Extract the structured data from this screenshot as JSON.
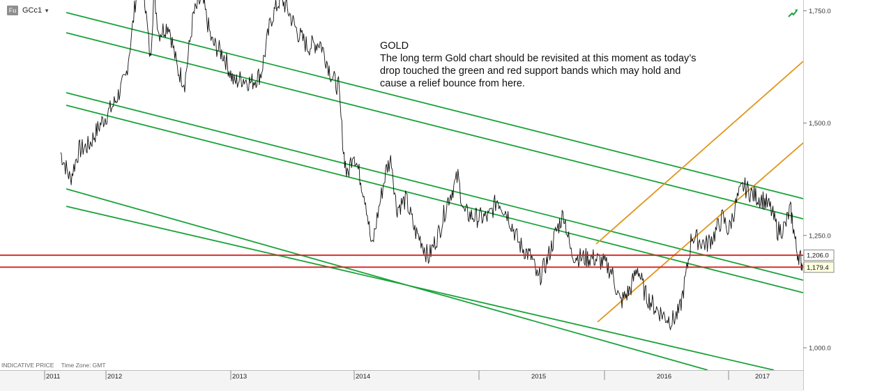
{
  "toolbar": {
    "badge": "Fu",
    "symbol": "GCc1",
    "trend_icon": "trend-arrow-icon"
  },
  "annotation": {
    "title": "GOLD",
    "lines": [
      "The long term Gold chart should be revisited at this moment as today’s",
      "drop touched the green and red support bands which may hold and",
      "cause a relief bounce from here."
    ]
  },
  "footer": {
    "price_type": "INDICATIVE PRICE",
    "timezone": "Time Zone: GMT"
  },
  "colors": {
    "price": "#111111",
    "channel": "#1aa23a",
    "support": "#d42020",
    "uptrend": "#e0951c"
  },
  "chart_data": {
    "type": "line",
    "x_ticks": [
      "2011",
      "2012",
      "2013",
      "2014",
      "2015",
      "2016",
      "2017"
    ],
    "y_ticks": [
      "1,000.0",
      "1,250.0",
      "1,500.0",
      "1,750.0"
    ],
    "ylim": [
      930,
      1900
    ],
    "xlim": [
      2010.97,
      2017.43
    ],
    "price_labels": [
      "1,206.0",
      "1,179.4"
    ],
    "support_levels": [
      1206.0,
      1179.4
    ],
    "series": [
      {
        "values": [
          [
            2010.97,
            1435
          ],
          [
            2011.05,
            1375
          ],
          [
            2011.12,
            1440
          ],
          [
            2011.2,
            1450
          ],
          [
            2011.3,
            1500
          ],
          [
            2011.4,
            1540
          ],
          [
            2011.5,
            1600
          ],
          [
            2011.55,
            1700
          ],
          [
            2011.6,
            1820
          ],
          [
            2011.63,
            1890
          ],
          [
            2011.66,
            1760
          ],
          [
            2011.7,
            1640
          ],
          [
            2011.73,
            1790
          ],
          [
            2011.77,
            1700
          ],
          [
            2011.85,
            1720
          ],
          [
            2011.92,
            1620
          ],
          [
            2011.98,
            1590
          ],
          [
            2012.05,
            1740
          ],
          [
            2012.12,
            1780
          ],
          [
            2012.2,
            1680
          ],
          [
            2012.3,
            1650
          ],
          [
            2012.38,
            1590
          ],
          [
            2012.45,
            1600
          ],
          [
            2012.52,
            1590
          ],
          [
            2012.6,
            1610
          ],
          [
            2012.68,
            1730
          ],
          [
            2012.76,
            1780
          ],
          [
            2012.82,
            1750
          ],
          [
            2012.9,
            1700
          ],
          [
            2012.98,
            1670
          ],
          [
            2013.08,
            1680
          ],
          [
            2013.12,
            1650
          ],
          [
            2013.18,
            1600
          ],
          [
            2013.23,
            1580
          ],
          [
            2013.27,
            1440
          ],
          [
            2013.3,
            1380
          ],
          [
            2013.35,
            1440
          ],
          [
            2013.45,
            1330
          ],
          [
            2013.5,
            1220
          ],
          [
            2013.55,
            1300
          ],
          [
            2013.62,
            1400
          ],
          [
            2013.66,
            1420
          ],
          [
            2013.7,
            1310
          ],
          [
            2013.78,
            1330
          ],
          [
            2013.85,
            1260
          ],
          [
            2013.9,
            1240
          ],
          [
            2013.96,
            1200
          ],
          [
            2014.05,
            1260
          ],
          [
            2014.12,
            1330
          ],
          [
            2014.2,
            1380
          ],
          [
            2014.25,
            1300
          ],
          [
            2014.35,
            1290
          ],
          [
            2014.45,
            1290
          ],
          [
            2014.52,
            1330
          ],
          [
            2014.6,
            1300
          ],
          [
            2014.7,
            1230
          ],
          [
            2014.8,
            1200
          ],
          [
            2014.85,
            1150
          ],
          [
            2014.92,
            1190
          ],
          [
            2015.0,
            1260
          ],
          [
            2015.06,
            1300
          ],
          [
            2015.12,
            1210
          ],
          [
            2015.2,
            1200
          ],
          [
            2015.3,
            1200
          ],
          [
            2015.38,
            1190
          ],
          [
            2015.45,
            1170
          ],
          [
            2015.52,
            1100
          ],
          [
            2015.6,
            1130
          ],
          [
            2015.66,
            1180
          ],
          [
            2015.72,
            1120
          ],
          [
            2015.8,
            1090
          ],
          [
            2015.88,
            1070
          ],
          [
            2015.94,
            1060
          ],
          [
            2016.0,
            1080
          ],
          [
            2016.06,
            1170
          ],
          [
            2016.1,
            1250
          ],
          [
            2016.15,
            1240
          ],
          [
            2016.22,
            1230
          ],
          [
            2016.28,
            1250
          ],
          [
            2016.35,
            1290
          ],
          [
            2016.4,
            1260
          ],
          [
            2016.47,
            1330
          ],
          [
            2016.52,
            1360
          ],
          [
            2016.6,
            1340
          ],
          [
            2016.68,
            1330
          ],
          [
            2016.74,
            1310
          ],
          [
            2016.8,
            1260
          ],
          [
            2016.86,
            1270
          ],
          [
            2016.9,
            1310
          ],
          [
            2016.92,
            1280
          ],
          [
            2016.95,
            1220
          ],
          [
            2016.98,
            1200
          ],
          [
            2017.0,
            1185
          ]
        ]
      }
    ],
    "grid": false,
    "legend": "none"
  }
}
